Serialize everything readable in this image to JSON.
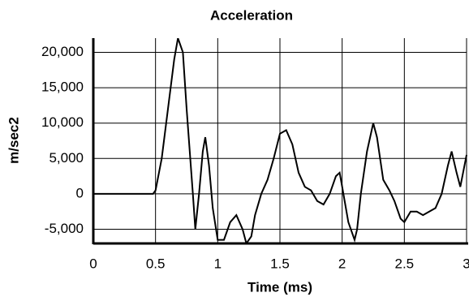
{
  "chart_data": {
    "type": "line",
    "title": "Acceleration",
    "x_label": "Time (ms)",
    "y_label": "m/sec2",
    "color": "#000000",
    "grid": true,
    "x": [
      0,
      0.48,
      0.5,
      0.55,
      0.6,
      0.65,
      0.68,
      0.72,
      0.75,
      0.8,
      0.82,
      0.85,
      0.88,
      0.9,
      0.93,
      0.96,
      1.0,
      1.05,
      1.1,
      1.15,
      1.2,
      1.23,
      1.27,
      1.3,
      1.35,
      1.4,
      1.45,
      1.5,
      1.55,
      1.6,
      1.65,
      1.7,
      1.75,
      1.8,
      1.85,
      1.9,
      1.95,
      1.98,
      2.0,
      2.05,
      2.1,
      2.12,
      2.15,
      2.2,
      2.25,
      2.28,
      2.33,
      2.38,
      2.42,
      2.47,
      2.5,
      2.55,
      2.6,
      2.65,
      2.7,
      2.75,
      2.8,
      2.85,
      2.88,
      2.92,
      2.95,
      3.0
    ],
    "values": [
      0,
      0,
      500,
      5000,
      12000,
      19000,
      22000,
      20000,
      12000,
      0,
      -5000,
      0,
      6000,
      8000,
      4000,
      -2000,
      -6500,
      -6500,
      -4000,
      -3000,
      -5000,
      -7000,
      -6000,
      -3000,
      0,
      2000,
      5000,
      8500,
      9000,
      7000,
      3000,
      1000,
      500,
      -1000,
      -1500,
      0,
      2500,
      3000,
      1000,
      -4000,
      -6500,
      -5000,
      0,
      6000,
      10000,
      8000,
      2000,
      500,
      -1000,
      -3500,
      -4000,
      -2500,
      -2500,
      -3000,
      -2500,
      -2000,
      0,
      4000,
      6000,
      3000,
      1000,
      5500
    ],
    "xlim": [
      0,
      3
    ],
    "xticks": [
      0,
      0.5,
      1,
      1.5,
      2,
      2.5,
      3
    ],
    "ylim": [
      -7000,
      22000
    ],
    "yticks": [
      {
        "value": -5000,
        "label": "-5,000"
      },
      0,
      {
        "value": 5000,
        "label": "5,000"
      },
      {
        "value": 10000,
        "label": "10,000"
      },
      {
        "value": 15000,
        "label": "15,000"
      },
      {
        "value": 20000,
        "label": "20,000"
      }
    ]
  }
}
